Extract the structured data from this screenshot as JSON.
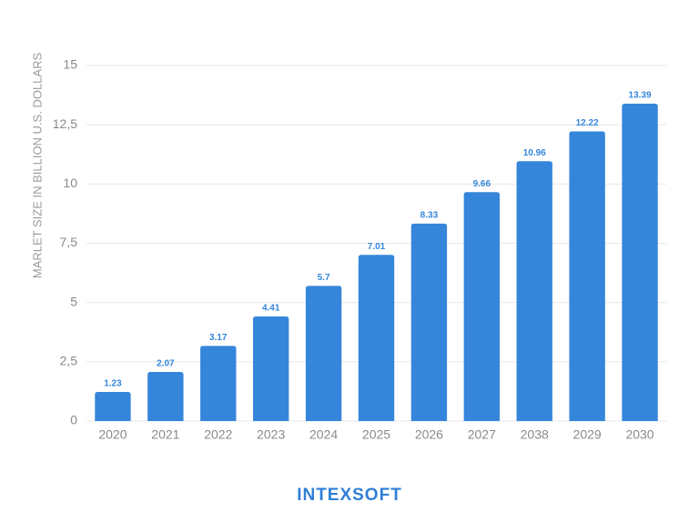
{
  "chart_data": {
    "type": "bar",
    "y_axis_label": "MARLET SIZE IN BILLION U.S. DOLLARS",
    "categories": [
      "2020",
      "2021",
      "2022",
      "2023",
      "2024",
      "2025",
      "2026",
      "2027",
      "2038",
      "2029",
      "2030"
    ],
    "values": [
      1.23,
      2.07,
      3.17,
      4.41,
      5.7,
      7.01,
      8.33,
      9.66,
      10.96,
      12.22,
      13.39
    ],
    "color": "#3586db",
    "ylim": [
      0,
      15
    ],
    "yticks": [
      0,
      {
        "value": 2.5,
        "label": "2,5"
      },
      5,
      {
        "value": 7.5,
        "label": "7,5"
      },
      10,
      {
        "value": 12.5,
        "label": "12,5"
      },
      15
    ],
    "grid": true
  },
  "logo": "INTEXSOFT"
}
